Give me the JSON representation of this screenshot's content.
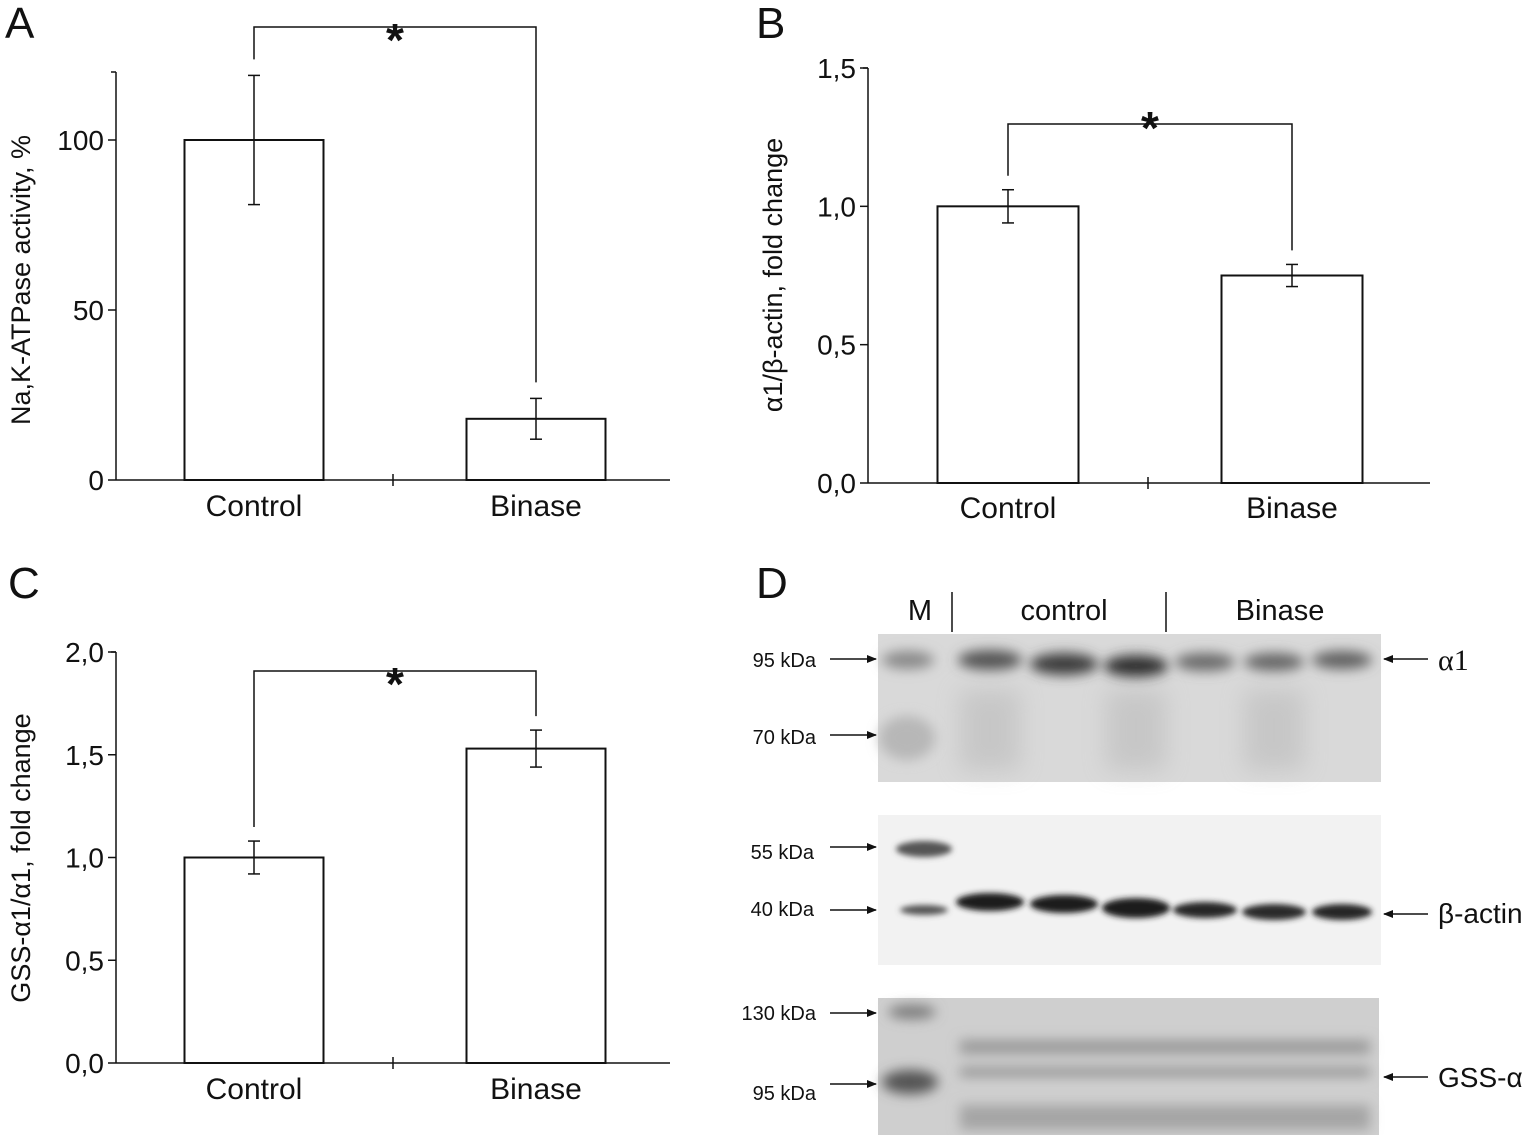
{
  "chart_data": [
    {
      "panel": "A",
      "type": "bar",
      "categories": [
        "Control",
        "Binase"
      ],
      "values": [
        100,
        18
      ],
      "errors": [
        [
          81,
          119
        ],
        [
          12,
          24
        ]
      ],
      "ylabel": "Na,K-ATPase activity, %",
      "ylim": [
        0,
        120
      ],
      "yticks": [
        "0",
        "50",
        "100"
      ],
      "significance": "*"
    },
    {
      "panel": "B",
      "type": "bar",
      "categories": [
        "Control",
        "Binase"
      ],
      "values": [
        1.0,
        0.75
      ],
      "errors": [
        [
          0.94,
          1.06
        ],
        [
          0.71,
          0.79
        ]
      ],
      "ylabel": "α1/β-actin, fold change",
      "ylim": [
        0,
        1.5
      ],
      "yticks": [
        "0,0",
        "0,5",
        "1,0",
        "1,5"
      ],
      "significance": "*"
    },
    {
      "panel": "C",
      "type": "bar",
      "categories": [
        "Control",
        "Binase"
      ],
      "values": [
        1.0,
        1.53
      ],
      "errors": [
        [
          0.92,
          1.08
        ],
        [
          1.44,
          1.62
        ]
      ],
      "ylabel": "GSS-α1/α1, fold change",
      "ylim": [
        0,
        2.0
      ],
      "yticks": [
        "0,0",
        "0,5",
        "1,0",
        "1,5",
        "2,0"
      ],
      "significance": "*"
    }
  ],
  "blot": {
    "panel": "D",
    "lane_headers": [
      "M",
      "control",
      "Binase"
    ],
    "strips": [
      {
        "markers": [
          "95 kDa",
          "70 kDa"
        ],
        "target": "α1"
      },
      {
        "markers": [
          "55 kDa",
          "40 kDa"
        ],
        "target": "β-actin"
      },
      {
        "markers": [
          "130 kDa",
          "95 kDa"
        ],
        "target": "GSS-α"
      }
    ]
  }
}
